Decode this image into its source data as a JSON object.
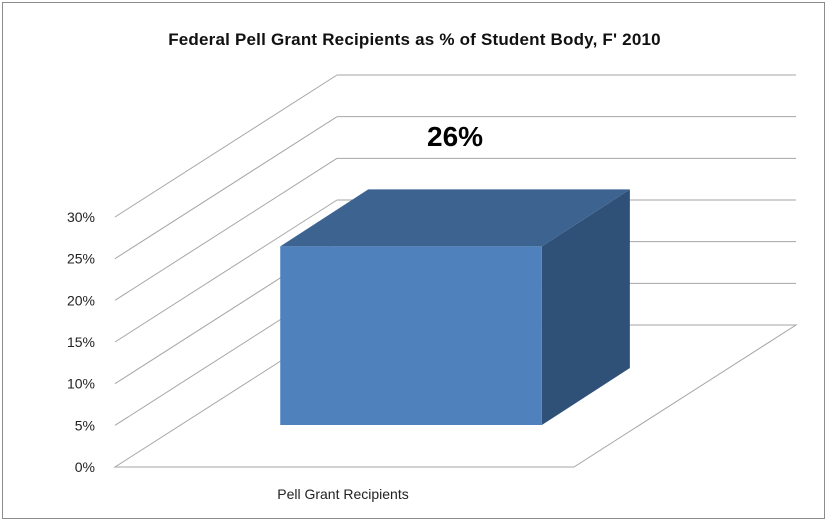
{
  "chart_data": {
    "type": "bar",
    "title": "Federal Pell Grant Recipients as % of Student Body, F' 2010",
    "categories": [
      "Pell Grant Recipients"
    ],
    "values": [
      26
    ],
    "data_labels": [
      "26%"
    ],
    "ylim": [
      0,
      30
    ],
    "yticks": [
      "0%",
      "5%",
      "10%",
      "15%",
      "20%",
      "25%",
      "30%"
    ],
    "xlabel": "",
    "ylabel": "",
    "grid": true,
    "style": "3d-column",
    "colors": {
      "bar_front": "#4f81bd",
      "bar_top": "#3d6491",
      "bar_side": "#2f5077",
      "gridline": "#a6a6a6"
    }
  }
}
